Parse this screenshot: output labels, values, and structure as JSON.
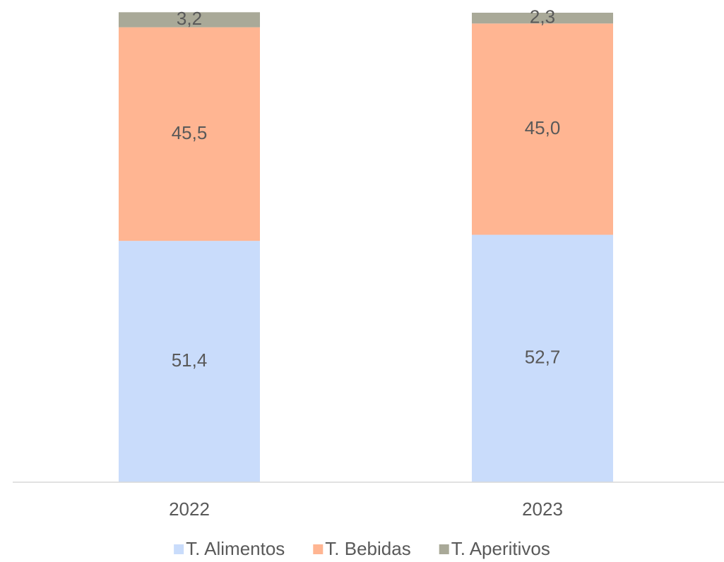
{
  "chart_data": {
    "type": "stacked_bar",
    "categories": [
      "2022",
      "2023"
    ],
    "series": [
      {
        "name": "T. Alimentos",
        "color": "#c9dcfb",
        "values": [
          51.4,
          52.7
        ],
        "value_labels": [
          "51,4",
          "52,7"
        ]
      },
      {
        "name": "T. Bebidas",
        "color": "#ffb592",
        "values": [
          45.5,
          45.0
        ],
        "value_labels": [
          "45,5",
          "45,0"
        ]
      },
      {
        "name": "T. Aperitivos",
        "color": "#a9a998",
        "values": [
          3.2,
          2.3
        ],
        "value_labels": [
          "3,2",
          "2,3"
        ]
      }
    ],
    "ylim": [
      0,
      100
    ],
    "legend": "bottom"
  }
}
